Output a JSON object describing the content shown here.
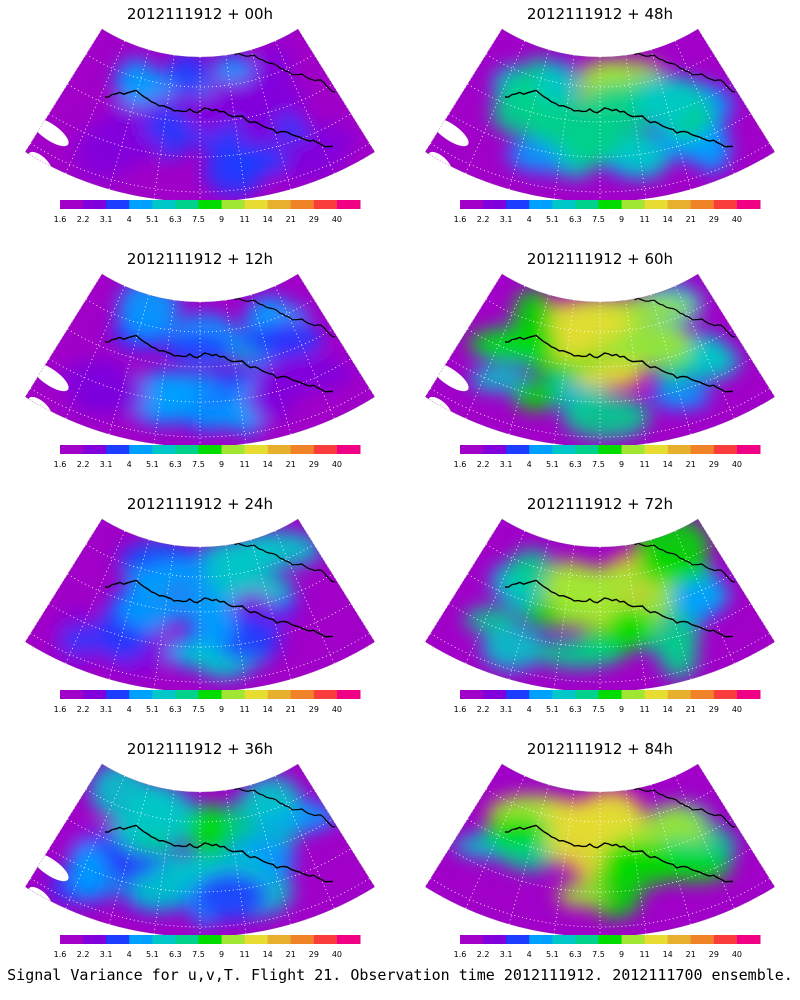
{
  "panels": [
    {
      "title": "2012111912 + 00h",
      "level": 0.18
    },
    {
      "title": "2012111912 + 48h",
      "level": 0.62
    },
    {
      "title": "2012111912 + 12h",
      "level": 0.3
    },
    {
      "title": "2012111912 + 60h",
      "level": 0.7
    },
    {
      "title": "2012111912 + 24h",
      "level": 0.38
    },
    {
      "title": "2012111912 + 72h",
      "level": 0.78
    },
    {
      "title": "2012111912 + 36h",
      "level": 0.46
    },
    {
      "title": "2012111912 + 84h",
      "level": 0.86
    }
  ],
  "colorbar": {
    "labels": [
      "1.6",
      "2.2",
      "3.1",
      "4",
      "5.1",
      "6.3",
      "7.5",
      "9",
      "11",
      "14",
      "21",
      "29",
      "40"
    ],
    "colors": [
      "#a000c8",
      "#8200dc",
      "#1e3cff",
      "#00a0ff",
      "#00c8c8",
      "#00d28c",
      "#00dc00",
      "#a0e632",
      "#e6dc32",
      "#e6af2d",
      "#f08228",
      "#fa3c3c",
      "#f00082"
    ]
  },
  "footer": "Signal Variance for u,v,T. Flight 21. Observation time 2012111912. 2012111700 ensemble."
}
